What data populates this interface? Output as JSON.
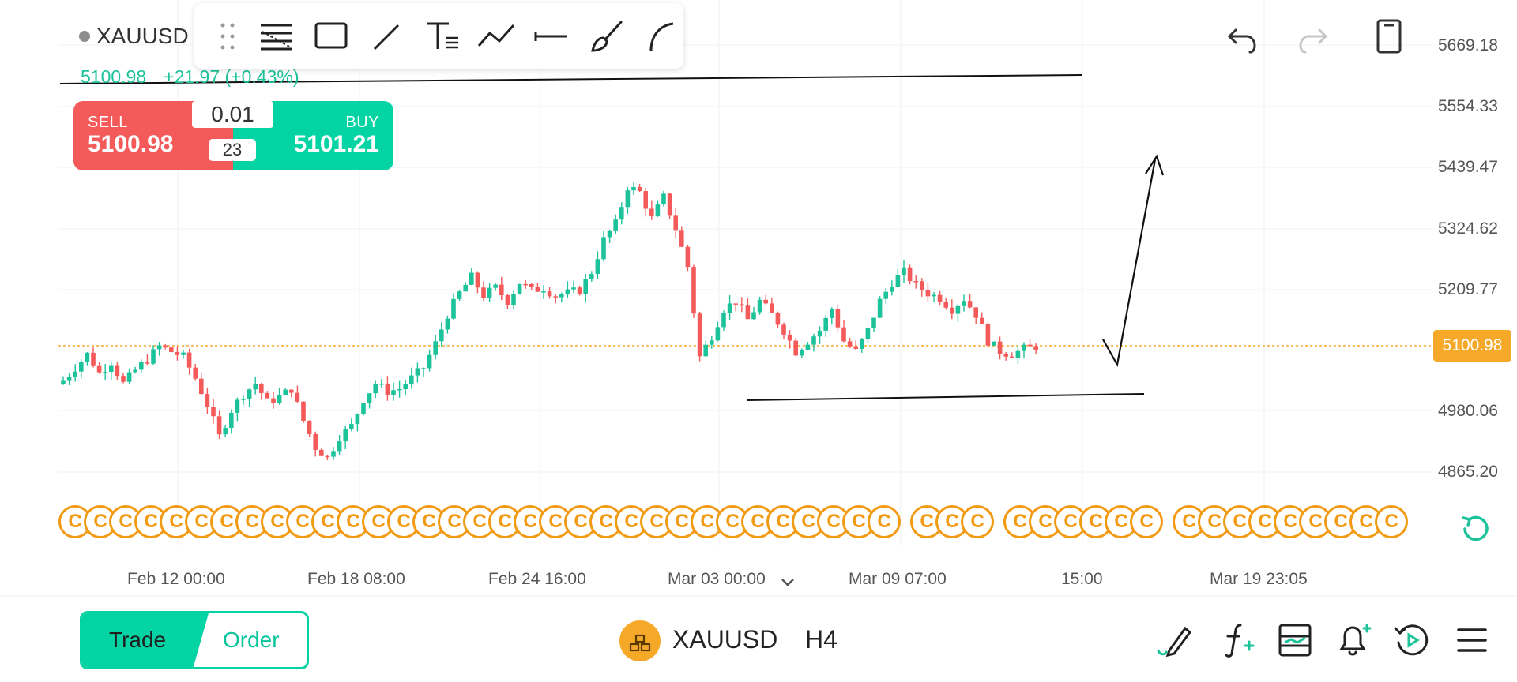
{
  "instrument": {
    "symbol": "XAUUSD",
    "status_dot": "market-closed-dot"
  },
  "quote": {
    "last": "5100.98",
    "change": "+21.97 (+0.43%)"
  },
  "trade_panel": {
    "sell_label": "SELL",
    "sell_price": "5100.98",
    "buy_label": "BUY",
    "buy_price": "5101.21",
    "lot": "0.01",
    "spread": "23"
  },
  "drawing_toolbar": {
    "tools": [
      "drag-handle",
      "fib-retracement-tool",
      "rectangle-tool",
      "trend-line-tool",
      "text-tool",
      "polyline-tool",
      "horizontal-line-tool",
      "brush-tool",
      "arc-tool"
    ]
  },
  "top_actions": [
    "undo",
    "redo",
    "layout-toggle"
  ],
  "price_axis": [
    "5669.18",
    "5554.33",
    "5439.47",
    "5324.62",
    "5209.77",
    "5100.98",
    "4980.06",
    "4865.20"
  ],
  "current_price_tag": "5100.98",
  "time_axis": [
    "Feb 12 00:00",
    "Feb 18 08:00",
    "Feb 24 16:00",
    "Mar 03 00:00",
    "Mar 09 07:00",
    "15:00",
    "Mar 19 23:05"
  ],
  "event_marker_glyph": "C",
  "bottom_bar": {
    "tab_trade": "Trade",
    "tab_order": "Order",
    "symbol": "XAUUSD",
    "timeframe": "H4",
    "actions": [
      "drawing-tools",
      "indicators",
      "templates",
      "alerts",
      "replay",
      "menu"
    ]
  },
  "colors": {
    "up": "#1cc39a",
    "down": "#f55a5a",
    "accent": "#04d4a4",
    "price_line": "#f6a928",
    "event": "#f39a13"
  },
  "chart_data": {
    "type": "candlestick",
    "symbol": "XAUUSD",
    "timeframe": "H4",
    "ylim": [
      4820,
      5700
    ],
    "y_ticks": [
      5669.18,
      5554.33,
      5439.47,
      5324.62,
      5209.77,
      4980.06,
      4865.2
    ],
    "current_price": 5100.98,
    "x_ticks": [
      "Feb 12 00:00",
      "Feb 18 08:00",
      "Feb 24 16:00",
      "Mar 03 00:00",
      "Mar 09 07:00",
      "15:00",
      "Mar 19 23:05"
    ],
    "close_path": [
      5035,
      5060,
      5085,
      5050,
      5070,
      5030,
      5055,
      5075,
      5100,
      5090,
      5080,
      5040,
      4990,
      4930,
      4980,
      5010,
      5030,
      4995,
      5005,
      5020,
      4960,
      4910,
      4890,
      4930,
      4950,
      5000,
      5030,
      5015,
      5020,
      5040,
      5060,
      5105,
      5160,
      5200,
      5230,
      5195,
      5210,
      5185,
      5220,
      5205,
      5210,
      5195,
      5200,
      5205,
      5240,
      5300,
      5330,
      5400,
      5390,
      5340,
      5380,
      5320,
      5250,
      5080,
      5120,
      5170,
      5185,
      5150,
      5185,
      5160,
      5130,
      5090,
      5110,
      5130,
      5170,
      5110,
      5090,
      5130,
      5185,
      5220,
      5240,
      5215,
      5200,
      5190,
      5170,
      5190,
      5160,
      5110,
      5090,
      5085,
      5095,
      5100
    ],
    "annotations": [
      {
        "type": "horizontal-line",
        "price": 5640
      },
      {
        "type": "support-line",
        "from_price": 4990,
        "to_price": 5000
      },
      {
        "type": "forecast-arrow",
        "path_prices": [
          5110,
          5050,
          5440
        ]
      }
    ]
  }
}
